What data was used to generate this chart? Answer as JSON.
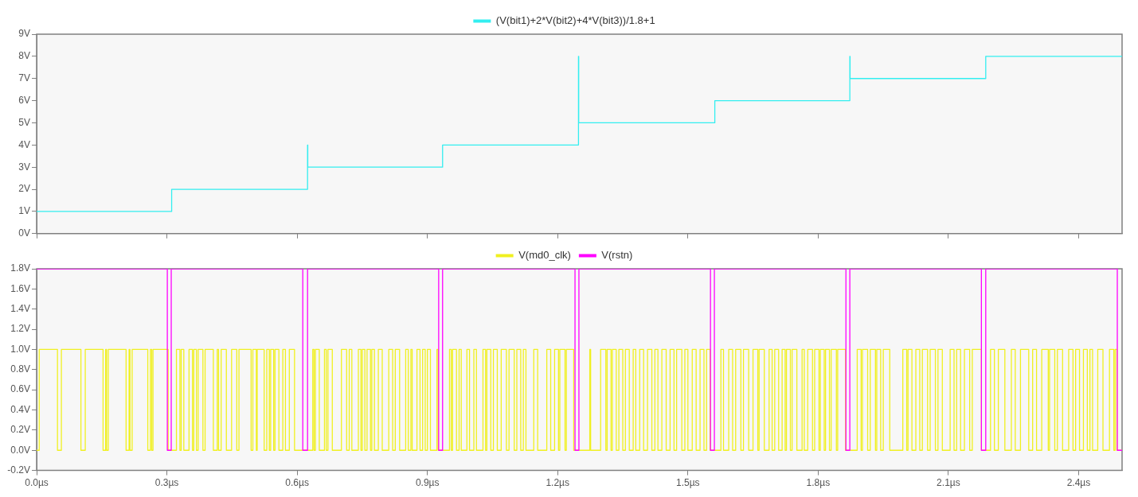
{
  "chart_data": [
    {
      "type": "step",
      "legend": "top",
      "grid": false,
      "marker": "none",
      "tick_labels": "y",
      "series": [
        {
          "name": "(V(bit1)+2*V(bit2)+4*V(bit3))/1.8+1",
          "color": "#33eef0",
          "x": [
            0,
            0.311,
            0.624,
            0.6245,
            0.935,
            1.248,
            1.2485,
            1.562,
            1.873,
            1.8735,
            2.186,
            2.5
          ],
          "values": [
            1,
            2,
            4,
            3,
            4,
            8,
            5,
            6,
            8,
            7,
            8,
            8
          ]
        }
      ],
      "xlim": [
        0,
        2.5
      ],
      "xticks": [
        {
          "value": 0,
          "label": null
        },
        {
          "value": 0.3,
          "label": null
        },
        {
          "value": 0.6,
          "label": null
        },
        {
          "value": 0.9,
          "label": null
        },
        {
          "value": 1.2,
          "label": null
        },
        {
          "value": 1.5,
          "label": null
        },
        {
          "value": 1.8,
          "label": null
        },
        {
          "value": 2.1,
          "label": null
        },
        {
          "value": 2.4,
          "label": null
        }
      ],
      "ylim": [
        0,
        9
      ],
      "yticks": [
        {
          "value": 0,
          "label": "0V"
        },
        {
          "value": 1,
          "label": "1V"
        },
        {
          "value": 2,
          "label": "2V"
        },
        {
          "value": 3,
          "label": "3V"
        },
        {
          "value": 4,
          "label": "4V"
        },
        {
          "value": 5,
          "label": "5V"
        },
        {
          "value": 6,
          "label": "6V"
        },
        {
          "value": 7,
          "label": "7V"
        },
        {
          "value": 8,
          "label": "8V"
        },
        {
          "value": 9,
          "label": "9V"
        }
      ]
    },
    {
      "type": "step",
      "legend": "top",
      "grid": false,
      "marker": "none",
      "series": [
        {
          "name": "V(md0_clk)",
          "color": "#f0f020",
          "x": [
            0,
            0.006,
            0.048,
            0.057,
            0.102,
            0.112,
            0.153,
            0.159,
            0.161,
            0.165,
            0.206,
            0.213,
            0.215,
            0.22,
            0.256,
            0.262,
            0.265,
            0.268,
            0.303,
            0.322,
            0.33,
            0.333,
            0.339,
            0.351,
            0.359,
            0.362,
            0.368,
            0.372,
            0.383,
            0.388,
            0.407,
            0.416,
            0.419,
            0.425,
            0.437,
            0.449,
            0.461,
            0.466,
            0.494,
            0.498,
            0.506,
            0.508,
            0.524,
            0.53,
            0.536,
            0.539,
            0.546,
            0.549,
            0.558,
            0.567,
            0.573,
            0.582,
            0.594,
            0.636,
            0.639,
            0.642,
            0.651,
            0.663,
            0.667,
            0.671,
            0.681,
            0.702,
            0.714,
            0.72,
            0.726,
            0.741,
            0.747,
            0.75,
            0.756,
            0.761,
            0.769,
            0.772,
            0.778,
            0.787,
            0.796,
            0.811,
            0.82,
            0.826,
            0.836,
            0.85,
            0.856,
            0.862,
            0.865,
            0.876,
            0.883,
            0.889,
            0.895,
            0.9,
            0.907,
            0.922,
            0.925,
            0.951,
            0.955,
            0.958,
            0.967,
            0.973,
            0.978,
            0.991,
            0.997,
            1.007,
            1.013,
            1.028,
            1.034,
            1.037,
            1.046,
            1.052,
            1.061,
            1.07,
            1.082,
            1.088,
            1.1,
            1.106,
            1.115,
            1.121,
            1.127,
            1.145,
            1.154,
            1.175,
            1.184,
            1.193,
            1.202,
            1.205,
            1.217,
            1.22,
            1.237,
            1.274,
            1.276,
            1.299,
            1.311,
            1.314,
            1.323,
            1.326,
            1.335,
            1.341,
            1.35,
            1.356,
            1.365,
            1.374,
            1.38,
            1.389,
            1.398,
            1.407,
            1.417,
            1.424,
            1.431,
            1.44,
            1.45,
            1.459,
            1.468,
            1.474,
            1.486,
            1.493,
            1.5,
            1.51,
            1.519,
            1.528,
            1.537,
            1.543,
            1.551,
            1.576,
            1.582,
            1.594,
            1.603,
            1.61,
            1.622,
            1.628,
            1.64,
            1.65,
            1.661,
            1.664,
            1.676,
            1.687,
            1.694,
            1.7,
            1.709,
            1.717,
            1.724,
            1.727,
            1.736,
            1.74,
            1.751,
            1.763,
            1.768,
            1.776,
            1.787,
            1.792,
            1.802,
            1.805,
            1.814,
            1.817,
            1.826,
            1.83,
            1.842,
            1.845,
            1.863,
            1.89,
            1.899,
            1.902,
            1.914,
            1.92,
            1.932,
            1.935,
            1.944,
            1.95,
            1.965,
            1.995,
            2.004,
            2.007,
            2.016,
            2.025,
            2.034,
            2.04,
            2.052,
            2.058,
            2.07,
            2.076,
            2.086,
            2.104,
            2.113,
            2.119,
            2.128,
            2.137,
            2.149,
            2.155,
            2.176,
            2.197,
            2.206,
            2.215,
            2.23,
            2.245,
            2.254,
            2.266,
            2.285,
            2.294,
            2.303,
            2.315,
            2.33,
            2.333,
            2.345,
            2.351,
            2.363,
            2.377,
            2.387,
            2.393,
            2.402,
            2.411,
            2.42,
            2.426,
            2.432,
            2.444,
            2.456,
            2.471,
            2.481,
            2.484,
            2.488,
            2.5
          ],
          "values": [
            0,
            1,
            0,
            1,
            0,
            1,
            0,
            1,
            0,
            1,
            0,
            1,
            0,
            1,
            0,
            1,
            0,
            1,
            0,
            1,
            0,
            1,
            0,
            1,
            0,
            1,
            0,
            1,
            0,
            1,
            0,
            1,
            0,
            1,
            0,
            1,
            0,
            1,
            0,
            1,
            0,
            1,
            0,
            1,
            0,
            1,
            0,
            1,
            0,
            1,
            0,
            1,
            0,
            1,
            0,
            1,
            0,
            1,
            0,
            1,
            0,
            1,
            0,
            1,
            0,
            1,
            0,
            1,
            0,
            1,
            0,
            1,
            0,
            1,
            0,
            1,
            0,
            1,
            0,
            1,
            0,
            1,
            0,
            1,
            0,
            1,
            0,
            1,
            0,
            1,
            0,
            1,
            0,
            1,
            0,
            1,
            0,
            1,
            0,
            1,
            0,
            1,
            0,
            1,
            0,
            1,
            0,
            1,
            0,
            1,
            0,
            1,
            0,
            1,
            0,
            1,
            0,
            1,
            0,
            1,
            0,
            1,
            0,
            1,
            0,
            1,
            0,
            1,
            0,
            1,
            0,
            1,
            0,
            1,
            0,
            1,
            0,
            1,
            0,
            1,
            0,
            1,
            0,
            1,
            0,
            1,
            0,
            1,
            0,
            1,
            0,
            1,
            0,
            1,
            0,
            1,
            0,
            1,
            0,
            1,
            0,
            1,
            0,
            1,
            0,
            1,
            0,
            1,
            0,
            1,
            0,
            1,
            0,
            1,
            0,
            1,
            0,
            1,
            0,
            1,
            0,
            1,
            0,
            1,
            0,
            1,
            0,
            1,
            0,
            1,
            0,
            1,
            0,
            1,
            0,
            1,
            0,
            1,
            0,
            1,
            0,
            1,
            0,
            1,
            0,
            1,
            0,
            1,
            0,
            1,
            0,
            1,
            0,
            1,
            0,
            1,
            0,
            1,
            0,
            1,
            0,
            1,
            0,
            1,
            0,
            1,
            0,
            1,
            0,
            1,
            0,
            1,
            0,
            1,
            0,
            1,
            0,
            1,
            0,
            1,
            0,
            1,
            0,
            1,
            0,
            1,
            0,
            1,
            0,
            1,
            0,
            1,
            0,
            1,
            0,
            0
          ]
        },
        {
          "name": "V(rstn)",
          "color": "#ff00ff",
          "x": [
            0,
            0.301,
            0.31,
            0.613,
            0.624,
            0.926,
            0.935,
            1.24,
            1.249,
            1.552,
            1.561,
            1.864,
            1.873,
            2.176,
            2.186,
            2.489,
            2.5
          ],
          "values": [
            1.8,
            0,
            1.8,
            0,
            1.8,
            0,
            1.8,
            0,
            1.8,
            0,
            1.8,
            0,
            1.8,
            0,
            1.8,
            0,
            0
          ]
        }
      ],
      "xlim": [
        0,
        2.5
      ],
      "xticks": [
        {
          "value": 0,
          "label": "0.0µs"
        },
        {
          "value": 0.3,
          "label": "0.3µs"
        },
        {
          "value": 0.6,
          "label": "0.6µs"
        },
        {
          "value": 0.9,
          "label": "0.9µs"
        },
        {
          "value": 1.2,
          "label": "1.2µs"
        },
        {
          "value": 1.5,
          "label": "1.5µs"
        },
        {
          "value": 1.8,
          "label": "1.8µs"
        },
        {
          "value": 2.1,
          "label": "2.1µs"
        },
        {
          "value": 2.4,
          "label": "2.4µs"
        }
      ],
      "ylim": [
        -0.2,
        1.8
      ],
      "yticks": [
        {
          "value": -0.2,
          "label": "-0.2V"
        },
        {
          "value": 0,
          "label": "0.0V"
        },
        {
          "value": 0.2,
          "label": "0.2V"
        },
        {
          "value": 0.4,
          "label": "0.4V"
        },
        {
          "value": 0.6,
          "label": "0.6V"
        },
        {
          "value": 0.8,
          "label": "0.8V"
        },
        {
          "value": 1.0,
          "label": "1.0V"
        },
        {
          "value": 1.2,
          "label": "1.2V"
        },
        {
          "value": 1.4,
          "label": "1.4V"
        },
        {
          "value": 1.6,
          "label": "1.6V"
        },
        {
          "value": 1.8,
          "label": "1.8V"
        }
      ]
    }
  ]
}
